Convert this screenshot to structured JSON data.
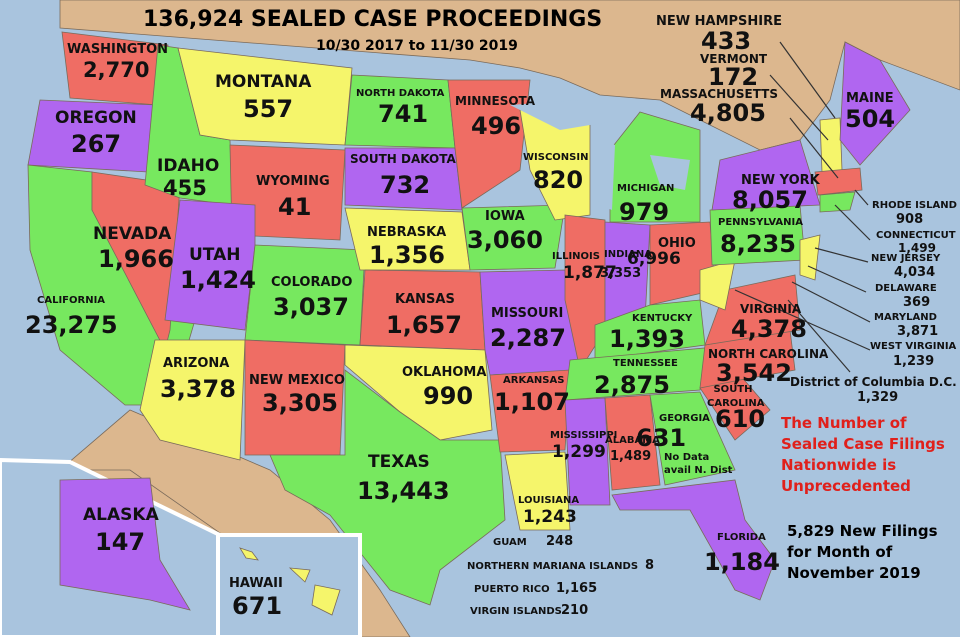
{
  "title": "136,924 SEALED CASE PROCEEDINGS",
  "date_range": "10/30 2017 to 11/30 2019",
  "colors": {
    "ocean": "#a9c4de",
    "land": "#dcb78e",
    "green": "#77e85f",
    "yellow": "#f5f56b",
    "red": "#ef6d64",
    "purple": "#b066f0",
    "note": "#e0201b"
  },
  "states": [
    {
      "name": "WASHINGTON",
      "value": "2,770",
      "color": "red"
    },
    {
      "name": "OREGON",
      "value": "267",
      "color": "purple"
    },
    {
      "name": "IDAHO",
      "value": "455",
      "color": "green"
    },
    {
      "name": "MONTANA",
      "value": "557",
      "color": "yellow"
    },
    {
      "name": "NORTH DAKOTA",
      "value": "741",
      "color": "green"
    },
    {
      "name": "SOUTH DAKOTA",
      "value": "732",
      "color": "purple"
    },
    {
      "name": "MINNESOTA",
      "value": "496",
      "color": "red"
    },
    {
      "name": "WISCONSIN",
      "value": "820",
      "color": "yellow"
    },
    {
      "name": "MICHIGAN",
      "value": "979",
      "color": "green"
    },
    {
      "name": "WYOMING",
      "value": "41",
      "color": "red"
    },
    {
      "name": "NEVADA",
      "value": "1,966",
      "color": "red"
    },
    {
      "name": "UTAH",
      "value": "1,424",
      "color": "purple"
    },
    {
      "name": "COLORADO",
      "value": "3,037",
      "color": "green"
    },
    {
      "name": "NEBRASKA",
      "value": "1,356",
      "color": "yellow"
    },
    {
      "name": "IOWA",
      "value": "3,060",
      "color": "green"
    },
    {
      "name": "ILLINOIS",
      "value": "1,877",
      "color": "red"
    },
    {
      "name": "INDIANA",
      "value": "3,353",
      "color": "purple"
    },
    {
      "name": "OHIO",
      "value": "6,996",
      "color": "red"
    },
    {
      "name": "CALIFORNIA",
      "value": "23,275",
      "color": "green"
    },
    {
      "name": "KANSAS",
      "value": "1,657",
      "color": "red"
    },
    {
      "name": "MISSOURI",
      "value": "2,287",
      "color": "purple"
    },
    {
      "name": "KENTUCKY",
      "value": "1,393",
      "color": "green"
    },
    {
      "name": "ARIZONA",
      "value": "3,378",
      "color": "yellow"
    },
    {
      "name": "NEW MEXICO",
      "value": "3,305",
      "color": "red"
    },
    {
      "name": "OKLAHOMA",
      "value": "990",
      "color": "yellow"
    },
    {
      "name": "ARKANSAS",
      "value": "1,107",
      "color": "red"
    },
    {
      "name": "TENNESSEE",
      "value": "2,875",
      "color": "green"
    },
    {
      "name": "TEXAS",
      "value": "13,443",
      "color": "green"
    },
    {
      "name": "MISSISSIPPI",
      "value": "1,299",
      "color": "purple"
    },
    {
      "name": "ALABAMA",
      "value": "1,489",
      "color": "red"
    },
    {
      "name": "GEORGIA",
      "value": "631",
      "color": "green"
    },
    {
      "name": "LOUISIANA",
      "value": "1,243",
      "color": "yellow"
    },
    {
      "name": "FLORIDA",
      "value": "1,184",
      "color": "purple"
    },
    {
      "name": "SOUTH CAROLINA",
      "value": "610",
      "color": "red"
    },
    {
      "name": "NORTH CAROLINA",
      "value": "3,542",
      "color": "red"
    },
    {
      "name": "VIRGINIA",
      "value": "4,378",
      "color": "red"
    },
    {
      "name": "PENNSYLVANIA",
      "value": "8,235",
      "color": "green"
    },
    {
      "name": "NEW YORK",
      "value": "8,057",
      "color": "purple"
    },
    {
      "name": "MAINE",
      "value": "504",
      "color": "purple"
    },
    {
      "name": "ALASKA",
      "value": "147",
      "color": "purple"
    },
    {
      "name": "HAWAII",
      "value": "671",
      "color": "yellow"
    }
  ],
  "georgia_note": [
    "No Data",
    "avail N. Dist"
  ],
  "northeast_callouts": [
    {
      "name": "NEW HAMPSHIRE",
      "value": "433"
    },
    {
      "name": "VERMONT",
      "value": "172"
    },
    {
      "name": "MASSACHUSETTS",
      "value": "4,805"
    }
  ],
  "east_callouts": [
    {
      "name": "RHODE ISLAND",
      "value": "908"
    },
    {
      "name": "CONNECTICUT",
      "value": "1,499"
    },
    {
      "name": "NEW JERSEY",
      "value": "4,034"
    },
    {
      "name": "DELAWARE",
      "value": "369"
    },
    {
      "name": "MARYLAND",
      "value": "3,871"
    },
    {
      "name": "WEST VIRGINIA",
      "value": "1,239"
    },
    {
      "name": "District of Columbia D.C.",
      "value": "1,329"
    }
  ],
  "territories": [
    {
      "name": "GUAM",
      "value": "248"
    },
    {
      "name": "NORTHERN MARIANA ISLANDS",
      "value": "8"
    },
    {
      "name": "PUERTO RICO",
      "value": "1,165"
    },
    {
      "name": "VIRGIN ISLANDS",
      "value": "210"
    }
  ],
  "note_lines": [
    "The Number of",
    "Sealed Case Filings",
    "Nationwide is",
    "Unprecedented"
  ],
  "new_filings_lines": [
    "5,829 New Filings",
    "for Month of",
    "November 2019"
  ]
}
